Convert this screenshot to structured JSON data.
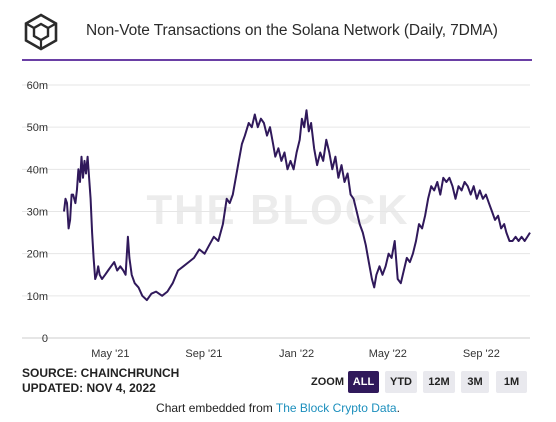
{
  "header": {
    "title": "Non-Vote Transactions on the Solana Network (Daily, 7DMA)"
  },
  "chart_data": {
    "type": "line",
    "title": "Non-Vote Transactions on the Solana Network (Daily, 7DMA)",
    "xlabel": "",
    "ylabel": "",
    "ylim": [
      0,
      60
    ],
    "y_ticks": [
      "0",
      "10m",
      "20m",
      "30m",
      "40m",
      "50m",
      "60m"
    ],
    "x_ticks": [
      "May '21",
      "Sep '21",
      "Jan '22",
      "May '22",
      "Sep '22"
    ],
    "x_tick_dates": [
      "2021-05-01",
      "2021-09-01",
      "2022-01-01",
      "2022-05-01",
      "2022-09-01"
    ],
    "grid": "horizontal",
    "watermark": "THE BLOCK",
    "series": [
      {
        "color": "#30195b",
        "points": [
          [
            "2021-03-01",
            30
          ],
          [
            "2021-03-03",
            33
          ],
          [
            "2021-03-05",
            32
          ],
          [
            "2021-03-07",
            26
          ],
          [
            "2021-03-09",
            28
          ],
          [
            "2021-03-11",
            34
          ],
          [
            "2021-03-13",
            34
          ],
          [
            "2021-03-16",
            32
          ],
          [
            "2021-03-18",
            35
          ],
          [
            "2021-03-20",
            40
          ],
          [
            "2021-03-22",
            37
          ],
          [
            "2021-03-24",
            43
          ],
          [
            "2021-03-26",
            38
          ],
          [
            "2021-03-28",
            42
          ],
          [
            "2021-03-30",
            39
          ],
          [
            "2021-04-01",
            43
          ],
          [
            "2021-04-03",
            38
          ],
          [
            "2021-04-05",
            33
          ],
          [
            "2021-04-07",
            25
          ],
          [
            "2021-04-09",
            19
          ],
          [
            "2021-04-11",
            14
          ],
          [
            "2021-04-13",
            15
          ],
          [
            "2021-04-15",
            17
          ],
          [
            "2021-04-17",
            15
          ],
          [
            "2021-04-20",
            14
          ],
          [
            "2021-04-24",
            15
          ],
          [
            "2021-04-28",
            16
          ],
          [
            "2021-05-02",
            17
          ],
          [
            "2021-05-06",
            18
          ],
          [
            "2021-05-10",
            16
          ],
          [
            "2021-05-14",
            17
          ],
          [
            "2021-05-18",
            16
          ],
          [
            "2021-05-21",
            15
          ],
          [
            "2021-05-24",
            24
          ],
          [
            "2021-05-26",
            19
          ],
          [
            "2021-05-29",
            15
          ],
          [
            "2021-06-02",
            13
          ],
          [
            "2021-06-07",
            12
          ],
          [
            "2021-06-12",
            10
          ],
          [
            "2021-06-18",
            9
          ],
          [
            "2021-06-24",
            10.5
          ],
          [
            "2021-06-30",
            11
          ],
          [
            "2021-07-08",
            10
          ],
          [
            "2021-07-15",
            11
          ],
          [
            "2021-07-22",
            13
          ],
          [
            "2021-07-29",
            16
          ],
          [
            "2021-08-05",
            17
          ],
          [
            "2021-08-12",
            18
          ],
          [
            "2021-08-19",
            19
          ],
          [
            "2021-08-26",
            21
          ],
          [
            "2021-09-02",
            20
          ],
          [
            "2021-09-08",
            22
          ],
          [
            "2021-09-14",
            24
          ],
          [
            "2021-09-20",
            23
          ],
          [
            "2021-09-26",
            27
          ],
          [
            "2021-10-01",
            33
          ],
          [
            "2021-10-05",
            32
          ],
          [
            "2021-10-09",
            34
          ],
          [
            "2021-10-13",
            38
          ],
          [
            "2021-10-17",
            42
          ],
          [
            "2021-10-21",
            46
          ],
          [
            "2021-10-25",
            48
          ],
          [
            "2021-10-30",
            51
          ],
          [
            "2021-11-03",
            50
          ],
          [
            "2021-11-07",
            53
          ],
          [
            "2021-11-11",
            50
          ],
          [
            "2021-11-15",
            52
          ],
          [
            "2021-11-19",
            51
          ],
          [
            "2021-11-23",
            48
          ],
          [
            "2021-11-27",
            50
          ],
          [
            "2021-12-01",
            46
          ],
          [
            "2021-12-04",
            43
          ],
          [
            "2021-12-08",
            45
          ],
          [
            "2021-12-12",
            42
          ],
          [
            "2021-12-16",
            44
          ],
          [
            "2021-12-20",
            40
          ],
          [
            "2021-12-24",
            42
          ],
          [
            "2021-12-28",
            40
          ],
          [
            "2022-01-01",
            44
          ],
          [
            "2022-01-05",
            47
          ],
          [
            "2022-01-08",
            52
          ],
          [
            "2022-01-11",
            50
          ],
          [
            "2022-01-14",
            54
          ],
          [
            "2022-01-17",
            49
          ],
          [
            "2022-01-20",
            51
          ],
          [
            "2022-01-24",
            45
          ],
          [
            "2022-01-28",
            41
          ],
          [
            "2022-02-01",
            44
          ],
          [
            "2022-02-05",
            42
          ],
          [
            "2022-02-09",
            47
          ],
          [
            "2022-02-13",
            44
          ],
          [
            "2022-02-17",
            40
          ],
          [
            "2022-02-21",
            43
          ],
          [
            "2022-02-25",
            38
          ],
          [
            "2022-03-01",
            41
          ],
          [
            "2022-03-05",
            37
          ],
          [
            "2022-03-09",
            39
          ],
          [
            "2022-03-13",
            34
          ],
          [
            "2022-03-17",
            33
          ],
          [
            "2022-03-21",
            30
          ],
          [
            "2022-03-25",
            27
          ],
          [
            "2022-03-29",
            25
          ],
          [
            "2022-04-02",
            22
          ],
          [
            "2022-04-06",
            18
          ],
          [
            "2022-04-10",
            14
          ],
          [
            "2022-04-13",
            12
          ],
          [
            "2022-04-16",
            15
          ],
          [
            "2022-04-20",
            17
          ],
          [
            "2022-04-24",
            15
          ],
          [
            "2022-04-28",
            17
          ],
          [
            "2022-05-02",
            20
          ],
          [
            "2022-05-06",
            19
          ],
          [
            "2022-05-10",
            23
          ],
          [
            "2022-05-14",
            14
          ],
          [
            "2022-05-18",
            13
          ],
          [
            "2022-05-22",
            16
          ],
          [
            "2022-05-26",
            19
          ],
          [
            "2022-05-30",
            18
          ],
          [
            "2022-06-03",
            20
          ],
          [
            "2022-06-07",
            23
          ],
          [
            "2022-06-11",
            27
          ],
          [
            "2022-06-15",
            26
          ],
          [
            "2022-06-19",
            29
          ],
          [
            "2022-06-23",
            33
          ],
          [
            "2022-06-27",
            36
          ],
          [
            "2022-07-01",
            35
          ],
          [
            "2022-07-05",
            37
          ],
          [
            "2022-07-09",
            34
          ],
          [
            "2022-07-13",
            38
          ],
          [
            "2022-07-17",
            37
          ],
          [
            "2022-07-21",
            38
          ],
          [
            "2022-07-25",
            36
          ],
          [
            "2022-07-29",
            33
          ],
          [
            "2022-08-02",
            36
          ],
          [
            "2022-08-06",
            35
          ],
          [
            "2022-08-10",
            37
          ],
          [
            "2022-08-14",
            36
          ],
          [
            "2022-08-18",
            34
          ],
          [
            "2022-08-22",
            36
          ],
          [
            "2022-08-26",
            33
          ],
          [
            "2022-08-30",
            35
          ],
          [
            "2022-09-03",
            33
          ],
          [
            "2022-09-07",
            34
          ],
          [
            "2022-09-11",
            32
          ],
          [
            "2022-09-15",
            30
          ],
          [
            "2022-09-19",
            28
          ],
          [
            "2022-09-23",
            29
          ],
          [
            "2022-09-27",
            26
          ],
          [
            "2022-10-01",
            27
          ],
          [
            "2022-10-04",
            25
          ],
          [
            "2022-10-08",
            23
          ],
          [
            "2022-10-12",
            23
          ],
          [
            "2022-10-16",
            24
          ],
          [
            "2022-10-20",
            23
          ],
          [
            "2022-10-24",
            24
          ],
          [
            "2022-10-28",
            23
          ],
          [
            "2022-11-04",
            25
          ]
        ]
      }
    ]
  },
  "source": {
    "line1": "SOURCE: CHAINCHRUNCH",
    "line2": "UPDATED: NOV 4, 2022"
  },
  "zoom": {
    "label": "ZOOM",
    "buttons": [
      {
        "label": "ALL",
        "active": true
      },
      {
        "label": "YTD",
        "active": false
      },
      {
        "label": "12M",
        "active": false
      },
      {
        "label": "3M",
        "active": false
      },
      {
        "label": "1M",
        "active": false
      }
    ]
  },
  "footer": {
    "prefix": "Chart embedded from ",
    "link": "The Block Crypto Data",
    "suffix": "."
  },
  "colors": {
    "accent": "#6a3fa5",
    "line": "#30195b",
    "link": "#1c8fbd"
  }
}
